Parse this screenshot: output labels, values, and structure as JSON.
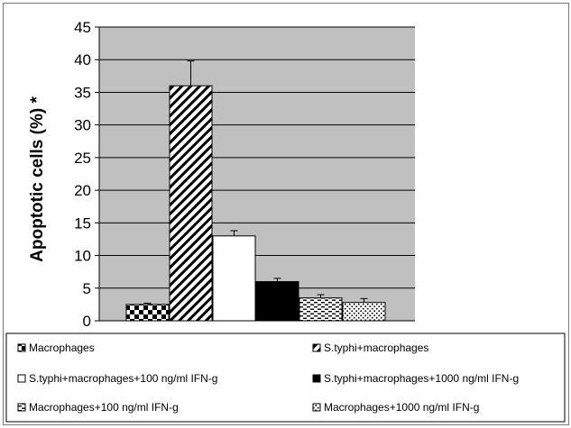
{
  "chart_data": {
    "type": "bar",
    "title": "",
    "xlabel": "",
    "ylabel": "Apoptotic cells (%) *",
    "ylim": [
      0,
      45
    ],
    "yticks": [
      0,
      5,
      10,
      15,
      20,
      25,
      30,
      35,
      40,
      45
    ],
    "grid": true,
    "legend_position": "bottom",
    "plot_background": "#c0c0c0",
    "series": [
      {
        "name": "Macrophages",
        "value": 2.5,
        "error": 0.2,
        "pattern": "checker"
      },
      {
        "name": "S.typhi+macrophages",
        "value": 36,
        "error": 3.8,
        "pattern": "diagonal"
      },
      {
        "name": "S.typhi+macrophages+100 ng/ml IFN-g",
        "value": 13,
        "error": 0.8,
        "pattern": "white"
      },
      {
        "name": "S.typhi+macrophages+1000 ng/ml IFN-g",
        "value": 6,
        "error": 0.5,
        "pattern": "black"
      },
      {
        "name": "Macrophages+100 ng/ml IFN-g",
        "value": 3.5,
        "error": 0.5,
        "pattern": "dashes"
      },
      {
        "name": "Macrophages+1000 ng/ml IFN-g",
        "value": 2.8,
        "error": 0.6,
        "pattern": "dots"
      }
    ]
  }
}
